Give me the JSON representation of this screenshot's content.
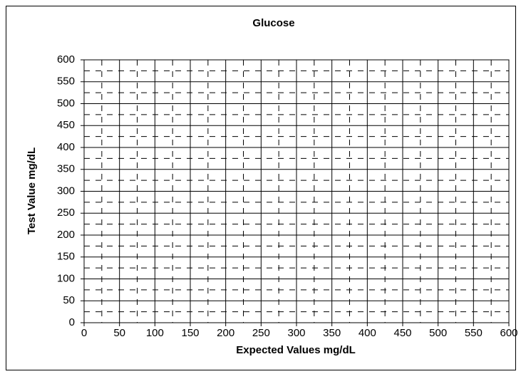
{
  "chart_data": {
    "type": "scatter",
    "title": "Glucose",
    "x_label": "Expected Values mg/dL",
    "y_label": "Test Value mg/dL",
    "xlim": [
      0,
      600
    ],
    "ylim": [
      0,
      600
    ],
    "xticks": [
      0,
      50,
      100,
      150,
      200,
      250,
      300,
      350,
      400,
      450,
      500,
      550,
      600
    ],
    "yticks": [
      0,
      50,
      100,
      150,
      200,
      250,
      300,
      350,
      400,
      450,
      500,
      550,
      600
    ],
    "xminorticks": [
      25,
      75,
      125,
      175,
      225,
      275,
      325,
      375,
      425,
      475,
      525,
      575
    ],
    "yminorticks": [
      25,
      75,
      125,
      175,
      225,
      275,
      325,
      375,
      425,
      475,
      525,
      575
    ],
    "grid": true,
    "minor_grid": true,
    "series": []
  }
}
